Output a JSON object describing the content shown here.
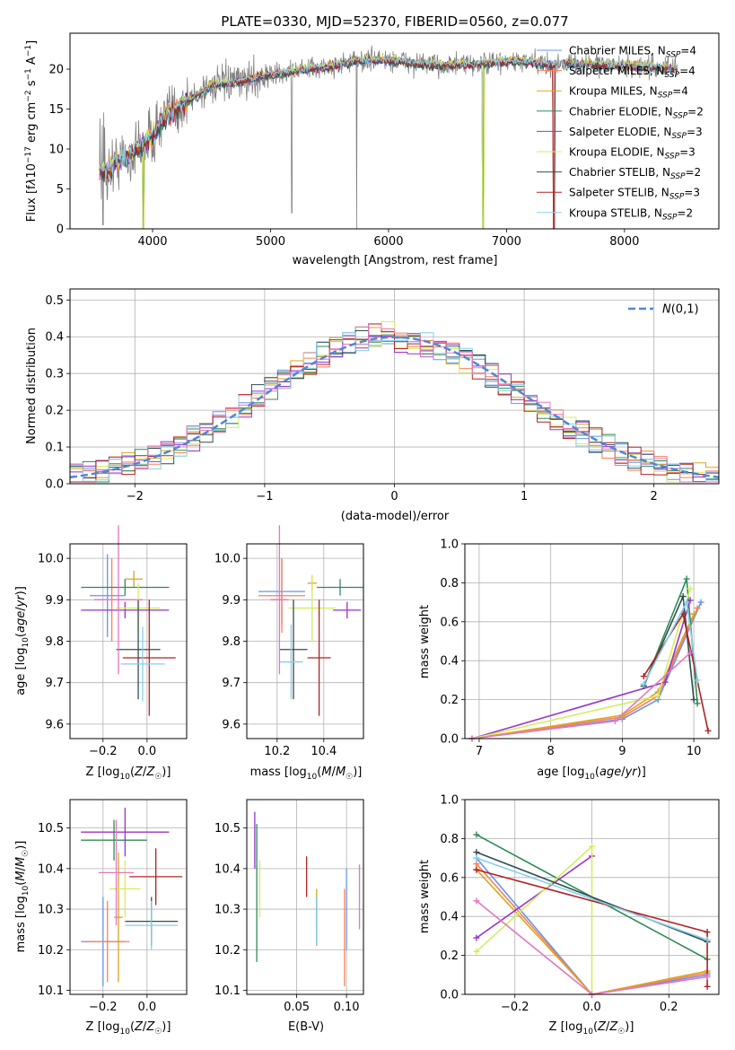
{
  "chart_data": [
    {
      "id": "spectrum",
      "type": "line",
      "title": "PLATE=0330, MJD=52370, FIBERID=0560, z=0.077",
      "xlabel": "wavelength [Angstrom, rest frame]",
      "ylabel": "Flux [f_λ 10^-17 erg cm^-2 s^-1 A^-1]",
      "xlim": [
        3300,
        8800
      ],
      "ylim": [
        0,
        24.5
      ],
      "xticks": [
        4000,
        5000,
        6000,
        7000,
        8000
      ],
      "yticks": [
        0,
        5,
        10,
        15,
        20
      ],
      "grid": false,
      "legend_position": "top-right",
      "series": [
        {
          "name": "Chabrier MILES, N_SSP=4",
          "color": "#6495ed"
        },
        {
          "name": "Salpeter MILES, N_SSP=4",
          "color": "#ff7f50"
        },
        {
          "name": "Kroupa MILES, N_SSP=4",
          "color": "#daa520"
        },
        {
          "name": "Chabrier ELODIE, N_SSP=2",
          "color": "#2e8b57"
        },
        {
          "name": "Salpeter ELODIE, N_SSP=3",
          "color": "#9932cc"
        },
        {
          "name": "Kroupa ELODIE, N_SSP=3",
          "color": "#d4ed5f"
        },
        {
          "name": "Chabrier STELIB, N_SSP=2",
          "color": "#2f4f4f"
        },
        {
          "name": "Salpeter STELIB, N_SSP=3",
          "color": "#b22222"
        },
        {
          "name": "Kroupa STELIB, N_SSP=2",
          "color": "#87ceeb"
        }
      ],
      "data_color": "#808080",
      "continuum": {
        "x": [
          3550,
          3620,
          3700,
          3800,
          3900,
          3950,
          4000,
          4100,
          4200,
          4300,
          4400,
          4500,
          4700,
          4900,
          5100,
          5300,
          5500,
          5700,
          5900,
          6100,
          6300,
          6500,
          6700,
          6900,
          7100,
          7300,
          7420,
          7500,
          7700,
          7900,
          8100,
          8300,
          8450
        ],
        "y": [
          7.5,
          7,
          8.5,
          9,
          10.5,
          11,
          11.5,
          14,
          15,
          16,
          17,
          18,
          18.3,
          19,
          19.5,
          20,
          20.3,
          21,
          21.2,
          21,
          20.6,
          20.5,
          20.6,
          20.8,
          21,
          20.7,
          20.5,
          20.8,
          20.6,
          20.5,
          20.3,
          20.2,
          20
        ]
      },
      "dips": [
        {
          "x": 3580,
          "y": 0.5
        },
        {
          "x": 3920,
          "y": 0
        },
        {
          "x": 5180,
          "y": 2
        },
        {
          "x": 5730,
          "y": 0
        },
        {
          "x": 6800,
          "y": 0
        },
        {
          "x": 7400,
          "y": 0
        }
      ]
    },
    {
      "id": "residuals",
      "type": "histogram",
      "xlabel": "(data-model)/error",
      "ylabel": "Normed distribution",
      "xlim": [
        -2.5,
        2.5
      ],
      "ylim": [
        0,
        0.53
      ],
      "xticks": [
        -2,
        -1,
        0,
        1,
        2
      ],
      "yticks": [
        0,
        0.1,
        0.2,
        0.3,
        0.4,
        0.5
      ],
      "grid": true,
      "legend_position": "top-right",
      "reference": {
        "name": "N(0,1)",
        "color": "#4f86d8",
        "style": "dashed"
      },
      "bin_width": 0.1
    },
    {
      "id": "age-vs-Z",
      "type": "errorbar",
      "xlabel": "Z [log10(Z/Z☉)]",
      "ylabel": "age  [log10(age/yr)]",
      "xlim": [
        -0.35,
        0.18
      ],
      "ylim": [
        9.565,
        10.035
      ],
      "xticks": [
        -0.2,
        0.0
      ],
      "yticks": [
        9.6,
        9.7,
        9.8,
        9.9,
        10.0
      ],
      "grid": true,
      "points": [
        {
          "color": "#6495ed",
          "x": -0.18,
          "xerr": 0.08,
          "y": 9.91,
          "yerr": 0.1
        },
        {
          "color": "#ff7f50",
          "x": -0.16,
          "xerr": 0.08,
          "y": 9.9,
          "yerr": 0.1
        },
        {
          "color": "#daa520",
          "x": -0.06,
          "xerr": 0.04,
          "y": 9.95,
          "yerr": 0.02
        },
        {
          "color": "#2e8b57",
          "x": -0.1,
          "xerr": 0.2,
          "y": 9.93,
          "yerr": 0.02
        },
        {
          "color": "#9932cc",
          "x": -0.1,
          "xerr": 0.2,
          "y": 9.875,
          "yerr": 0.02
        },
        {
          "color": "#d4ed5f",
          "x": -0.04,
          "xerr": 0.1,
          "y": 9.88,
          "yerr": 0.06
        },
        {
          "color": "#2f4f4f",
          "x": -0.04,
          "xerr": 0.1,
          "y": 9.78,
          "yerr": 0.12
        },
        {
          "color": "#b22222",
          "x": 0.01,
          "xerr": 0.12,
          "y": 9.76,
          "yerr": 0.14
        },
        {
          "color": "#87ceeb",
          "x": -0.02,
          "xerr": 0.1,
          "y": 9.745,
          "yerr": 0.09
        },
        {
          "color": "#e377c2",
          "x": -0.13,
          "xerr": 0.11,
          "y": 9.9,
          "yerr": 0.18
        }
      ]
    },
    {
      "id": "age-vs-mass",
      "type": "errorbar",
      "xlabel": "mass [log10(M/M☉)]",
      "ylabel": "",
      "xlim": [
        10.07,
        10.57
      ],
      "ylim": [
        9.565,
        10.035
      ],
      "xticks": [
        10.2,
        10.4
      ],
      "yticks": [
        9.6,
        9.7,
        9.8,
        9.9,
        10.0
      ],
      "grid": true,
      "points": [
        {
          "color": "#6495ed",
          "x": 10.22,
          "xerr": 0.1,
          "y": 9.92,
          "yerr": 0.08
        },
        {
          "color": "#ff7f50",
          "x": 10.22,
          "xerr": 0.1,
          "y": 9.91,
          "yerr": 0.09
        },
        {
          "color": "#daa520",
          "x": 10.35,
          "xerr": 0.02,
          "y": 9.94,
          "yerr": 0.02
        },
        {
          "color": "#2e8b57",
          "x": 10.47,
          "xerr": 0.1,
          "y": 9.93,
          "yerr": 0.02
        },
        {
          "color": "#9932cc",
          "x": 10.5,
          "xerr": 0.06,
          "y": 9.875,
          "yerr": 0.02
        },
        {
          "color": "#d4ed5f",
          "x": 10.35,
          "xerr": 0.1,
          "y": 9.88,
          "yerr": 0.08
        },
        {
          "color": "#2f4f4f",
          "x": 10.27,
          "xerr": 0.06,
          "y": 9.78,
          "yerr": 0.12
        },
        {
          "color": "#b22222",
          "x": 10.38,
          "xerr": 0.05,
          "y": 9.76,
          "yerr": 0.14
        },
        {
          "color": "#87ceeb",
          "x": 10.26,
          "xerr": 0.05,
          "y": 9.75,
          "yerr": 0.09
        },
        {
          "color": "#e377c2",
          "x": 10.21,
          "xerr": 0.04,
          "y": 9.9,
          "yerr": 0.18
        }
      ]
    },
    {
      "id": "weight-vs-age",
      "type": "line",
      "xlabel": "age  [log10(age/yr)]",
      "ylabel": "mass weight",
      "xlim": [
        6.8,
        10.35
      ],
      "ylim": [
        0,
        1.0
      ],
      "xticks": [
        7,
        8,
        9,
        10
      ],
      "yticks": [
        0.0,
        0.2,
        0.4,
        0.6,
        0.8,
        1.0
      ],
      "grid": true,
      "series": [
        {
          "color": "#6495ed",
          "x": [
            6.9,
            9.0,
            9.5,
            10.1
          ],
          "y": [
            0,
            0.1,
            0.2,
            0.7
          ]
        },
        {
          "color": "#ff7f50",
          "x": [
            6.9,
            9.0,
            9.5,
            10.05
          ],
          "y": [
            0,
            0.11,
            0.22,
            0.67
          ]
        },
        {
          "color": "#daa520",
          "x": [
            6.9,
            9.0,
            9.5,
            10.0
          ],
          "y": [
            0,
            0.12,
            0.24,
            0.64
          ]
        },
        {
          "color": "#2e8b57",
          "x": [
            9.3,
            9.9,
            10.05
          ],
          "y": [
            0.27,
            0.82,
            0.18
          ]
        },
        {
          "color": "#9932cc",
          "x": [
            6.9,
            9.6,
            9.95
          ],
          "y": [
            0,
            0.29,
            0.71
          ]
        },
        {
          "color": "#d4ed5f",
          "x": [
            6.9,
            9.5,
            9.95
          ],
          "y": [
            0,
            0.22,
            0.77
          ]
        },
        {
          "color": "#2f4f4f",
          "x": [
            9.3,
            9.85,
            10.0
          ],
          "y": [
            0.27,
            0.73,
            0.2
          ]
        },
        {
          "color": "#b22222",
          "x": [
            9.3,
            9.85,
            10.2
          ],
          "y": [
            0.32,
            0.64,
            0.04
          ]
        },
        {
          "color": "#87ceeb",
          "x": [
            9.3,
            9.9,
            10.05
          ],
          "y": [
            0.28,
            0.7,
            0.3
          ]
        },
        {
          "color": "#e377c2",
          "x": [
            6.9,
            8.9,
            9.95
          ],
          "y": [
            0,
            0.09,
            0.44
          ]
        }
      ]
    },
    {
      "id": "mass-vs-Z",
      "type": "errorbar",
      "xlabel": "Z [log10(Z/Z☉)]",
      "ylabel": "mass [log10(M/M☉)]",
      "xlim": [
        -0.35,
        0.18
      ],
      "ylim": [
        10.09,
        10.57
      ],
      "xticks": [
        -0.2,
        0.0
      ],
      "yticks": [
        10.1,
        10.2,
        10.3,
        10.4,
        10.5
      ],
      "grid": true,
      "points": [
        {
          "color": "#6495ed",
          "x": -0.2,
          "xerr": 0.1,
          "y": 10.22,
          "yerr": 0.11
        },
        {
          "color": "#ff7f50",
          "x": -0.18,
          "xerr": 0.1,
          "y": 10.22,
          "yerr": 0.1
        },
        {
          "color": "#daa520",
          "x": -0.13,
          "xerr": 0.02,
          "y": 10.28,
          "yerr": 0.16
        },
        {
          "color": "#2e8b57",
          "x": -0.15,
          "xerr": 0.15,
          "y": 10.47,
          "yerr": 0.05
        },
        {
          "color": "#9932cc",
          "x": -0.1,
          "xerr": 0.2,
          "y": 10.49,
          "yerr": 0.06
        },
        {
          "color": "#d4ed5f",
          "x": -0.1,
          "xerr": 0.07,
          "y": 10.35,
          "yerr": 0.07
        },
        {
          "color": "#2f4f4f",
          "x": 0.02,
          "xerr": 0.12,
          "y": 10.27,
          "yerr": 0.06
        },
        {
          "color": "#b22222",
          "x": 0.04,
          "xerr": 0.12,
          "y": 10.38,
          "yerr": 0.07
        },
        {
          "color": "#87ceeb",
          "x": 0.02,
          "xerr": 0.12,
          "y": 10.26,
          "yerr": 0.06
        },
        {
          "color": "#e377c2",
          "x": -0.14,
          "xerr": 0.08,
          "y": 10.39,
          "yerr": 0.13
        }
      ]
    },
    {
      "id": "mass-vs-ebv",
      "type": "errorbar",
      "xlabel": "E(B-V)",
      "ylabel": "",
      "xlim": [
        0.0,
        0.117
      ],
      "ylim": [
        10.09,
        10.57
      ],
      "xticks": [
        0.05,
        0.1
      ],
      "yticks": [
        10.1,
        10.2,
        10.3,
        10.4,
        10.5
      ],
      "grid": true,
      "points": [
        {
          "color": "#6495ed",
          "x": 0.1,
          "y": 10.3,
          "yerr": 0.1
        },
        {
          "color": "#ff7f50",
          "x": 0.098,
          "y": 10.23,
          "yerr": 0.12
        },
        {
          "color": "#daa520",
          "x": 0.07,
          "y": 10.3,
          "yerr": 0.05
        },
        {
          "color": "#2e8b57",
          "x": 0.01,
          "y": 10.34,
          "yerr": 0.17
        },
        {
          "color": "#9932cc",
          "x": 0.008,
          "y": 10.47,
          "yerr": 0.07
        },
        {
          "color": "#d4ed5f",
          "x": 0.013,
          "y": 10.35,
          "yerr": 0.07
        },
        {
          "color": "#2f4f4f",
          "x": 0.07,
          "y": 10.27,
          "yerr": 0.06
        },
        {
          "color": "#b22222",
          "x": 0.06,
          "y": 10.38,
          "yerr": 0.05
        },
        {
          "color": "#87ceeb",
          "x": 0.07,
          "y": 10.27,
          "yerr": 0.06
        },
        {
          "color": "#e377c2",
          "x": 0.113,
          "y": 10.33,
          "yerr": 0.08
        }
      ]
    },
    {
      "id": "weight-vs-Z",
      "type": "line",
      "xlabel": "Z [log10(Z/Z☉)]",
      "ylabel": "mass weight",
      "xlim": [
        -0.33,
        0.33
      ],
      "ylim": [
        0,
        1.0
      ],
      "xticks": [
        -0.2,
        0.0,
        0.2
      ],
      "yticks": [
        0.0,
        0.2,
        0.4,
        0.6,
        0.8,
        1.0
      ],
      "grid": true,
      "series": [
        {
          "color": "#6495ed",
          "x": [
            -0.3,
            0.0,
            0.3
          ],
          "y": [
            0.7,
            0.0,
            0.1
          ]
        },
        {
          "color": "#ff7f50",
          "x": [
            -0.3,
            0.0,
            0.3
          ],
          "y": [
            0.67,
            0.0,
            0.11
          ]
        },
        {
          "color": "#daa520",
          "x": [
            -0.3,
            0.0,
            0.3
          ],
          "y": [
            0.64,
            0.0,
            0.12
          ]
        },
        {
          "color": "#2e8b57",
          "x": [
            -0.3,
            0.3
          ],
          "y": [
            0.82,
            0.18
          ]
        },
        {
          "color": "#9932cc",
          "x": [
            -0.3,
            0.0
          ],
          "y": [
            0.29,
            0.71
          ]
        },
        {
          "color": "#d4ed5f",
          "x": [
            -0.3,
            0.0,
            0.0
          ],
          "y": [
            0.22,
            0.76,
            0.0
          ]
        },
        {
          "color": "#2f4f4f",
          "x": [
            -0.3,
            0.3
          ],
          "y": [
            0.73,
            0.27
          ]
        },
        {
          "color": "#b22222",
          "x": [
            -0.3,
            0.3,
            0.3
          ],
          "y": [
            0.64,
            0.32,
            0.04
          ]
        },
        {
          "color": "#87ceeb",
          "x": [
            -0.3,
            0.3
          ],
          "y": [
            0.7,
            0.28
          ]
        },
        {
          "color": "#e377c2",
          "x": [
            -0.3,
            0.0,
            0.3
          ],
          "y": [
            0.48,
            0.0,
            0.09
          ]
        }
      ]
    }
  ]
}
